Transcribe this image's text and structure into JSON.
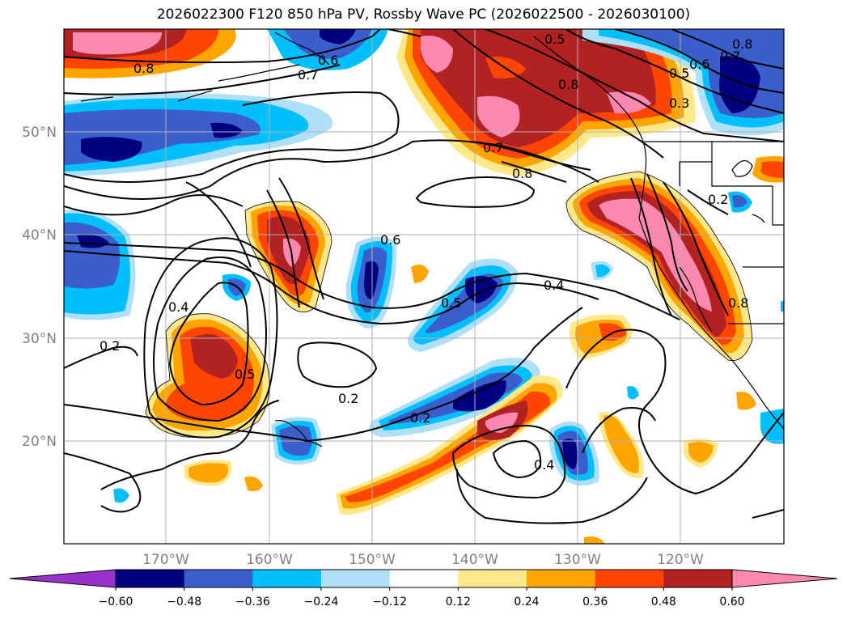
{
  "title": "2026022300 F120 850 hPa PV, Rossby Wave PC (2026022500 - 2026030100)",
  "map": {
    "region": "North Pacific / western North America",
    "lon_range": [
      -180,
      -110
    ],
    "lat_range": [
      10,
      60
    ],
    "lon_ticks": [
      "170°W",
      "160°W",
      "150°W",
      "140°W",
      "130°W",
      "120°W"
    ],
    "lat_ticks": [
      "50°N",
      "40°N",
      "30°N",
      "20°N"
    ],
    "gridlines": true,
    "contour_labels": [
      "0.8",
      "0.7",
      "0.5",
      "0.6",
      "0.7",
      "0.8",
      "0.5",
      "0.3",
      "0.7",
      "0.8",
      "0.2",
      "0.6",
      "0.4",
      "0.5",
      "0.4",
      "0.2",
      "0.5",
      "0.2",
      "0.2",
      "0.4",
      "0.6",
      "0.8",
      "0.8"
    ]
  },
  "colorbar": {
    "ticks": [
      "−0.60",
      "−0.48",
      "−0.36",
      "−0.24",
      "−0.12",
      "0.12",
      "0.24",
      "0.36",
      "0.48",
      "0.60"
    ],
    "colors": [
      "#9932cc",
      "#000080",
      "#3a5fcd",
      "#00bfff",
      "#b0e0f8",
      "#ffffff",
      "#ffe88a",
      "#ffa500",
      "#ff4500",
      "#b22222",
      "#ff88b0"
    ]
  }
}
